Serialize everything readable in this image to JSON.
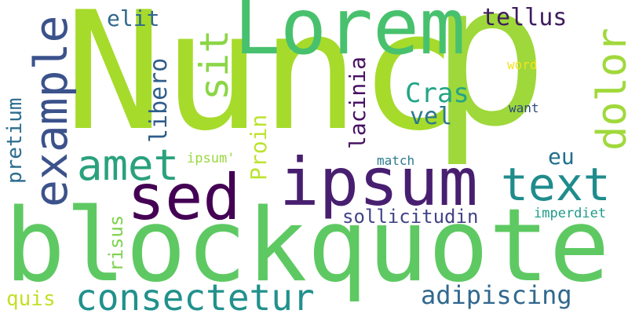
{
  "words": {
    "nunc": {
      "text": "Nunc",
      "color": "#a6db2b"
    },
    "p": {
      "text": "p",
      "color": "#9ed83a"
    },
    "lorem": {
      "text": "Lorem",
      "color": "#48c16e"
    },
    "blockquote": {
      "text": "blockquote",
      "color": "#5ec962"
    },
    "ipsum": {
      "text": "ipsum",
      "color": "#481f70"
    },
    "sed": {
      "text": "sed",
      "color": "#440154"
    },
    "text": {
      "text": "text",
      "color": "#1f8c8c"
    },
    "amet": {
      "text": "amet",
      "color": "#2aa17d"
    },
    "consectetur": {
      "text": "consectetur",
      "color": "#21918c"
    },
    "example": {
      "text": "example",
      "color": "#3b528b"
    },
    "dolor": {
      "text": "dolor",
      "color": "#a0d93b"
    },
    "sit": {
      "text": "sit",
      "color": "#8bd646"
    },
    "adipiscing": {
      "text": "adipiscing",
      "color": "#31688e"
    },
    "cras": {
      "text": "Cras",
      "color": "#22a585"
    },
    "vel": {
      "text": "vel",
      "color": "#2a788e"
    },
    "tellus": {
      "text": "tellus",
      "color": "#3e1b5e"
    },
    "elit": {
      "text": "elit",
      "color": "#31688e"
    },
    "eu": {
      "text": "eu",
      "color": "#1f6f8b"
    },
    "quis": {
      "text": "quis",
      "color": "#c5df27"
    },
    "sollicitudin": {
      "text": "sollicitudin",
      "color": "#414487"
    },
    "imperdiet": {
      "text": "imperdiet",
      "color": "#1e9b8a"
    },
    "ipsumq": {
      "text": "ipsum'",
      "color": "#9ad840"
    },
    "match": {
      "text": "match",
      "color": "#2a7b8e"
    },
    "word": {
      "text": "word",
      "color": "#f5e11e"
    },
    "want": {
      "text": "want",
      "color": "#2c4a7c"
    },
    "libero": {
      "text": "libero",
      "color": "#2f5d8a"
    },
    "lacinia": {
      "text": "lacinia",
      "color": "#471063"
    },
    "proin": {
      "text": "Proin",
      "color": "#bde330"
    },
    "pretium": {
      "text": "pretium",
      "color": "#2c6c8e"
    },
    "risus": {
      "text": "risus",
      "color": "#7ed24e"
    }
  }
}
